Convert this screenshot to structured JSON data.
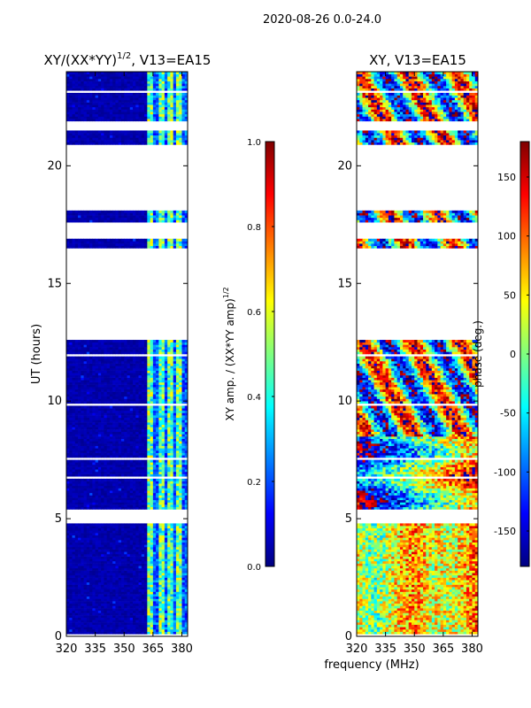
{
  "figure_title": "2020-08-26 0.0-24.0",
  "colors": {
    "background": "#ffffff",
    "axis": "#000000",
    "jet_stops": [
      "#00007f",
      "#0000ff",
      "#007fff",
      "#00ffff",
      "#7fff7f",
      "#ffff00",
      "#ff7f00",
      "#ff0000",
      "#7f0000"
    ]
  },
  "chart_data": [
    {
      "type": "heatmap",
      "title_main": "XY/(XX*YY)",
      "title_exp": "1/2",
      "title_suffix": ", V13=EA15",
      "xlabel": "",
      "ylabel": "UT (hours)",
      "xlim": [
        320,
        383
      ],
      "ylim": [
        0,
        24
      ],
      "xticks": [
        320,
        335,
        350,
        365,
        380
      ],
      "yticks": [
        0,
        5,
        10,
        15,
        20
      ],
      "colorbar": {
        "label_main": "XY amp. / (XX*YY amp)",
        "label_exp": "1/2",
        "range": [
          0.0,
          1.0
        ],
        "ticks": [
          "0.0",
          "0.2",
          "0.4",
          "0.6",
          "0.8",
          "1.0"
        ]
      },
      "data_ut_ranges": [
        [
          0.0,
          4.8
        ],
        [
          5.4,
          12.6
        ],
        [
          16.5,
          16.9
        ],
        [
          17.6,
          18.1
        ],
        [
          20.9,
          21.5
        ],
        [
          21.9,
          24.0
        ]
      ],
      "feature": "low amplitude (~0.0-0.1) below ~362 MHz; mixed 0.2-0.7 in the 362-383 MHz band"
    },
    {
      "type": "heatmap",
      "title": "XY, V13=EA15",
      "xlabel": "frequency (MHz)",
      "ylabel": "",
      "xlim": [
        320,
        383
      ],
      "ylim": [
        0,
        24
      ],
      "xticks": [
        320,
        335,
        350,
        365,
        380
      ],
      "yticks": [
        0,
        5,
        10,
        15,
        20
      ],
      "colorbar": {
        "label": "phase (deg.)",
        "range": [
          -180,
          180
        ],
        "ticks": [
          "-150",
          "-100",
          "-50",
          "0",
          "50",
          "100",
          "150"
        ]
      },
      "data_ut_ranges": [
        [
          0.0,
          4.8
        ],
        [
          5.4,
          12.6
        ],
        [
          16.5,
          16.9
        ],
        [
          17.6,
          18.1
        ],
        [
          20.9,
          21.5
        ],
        [
          21.9,
          24.0
        ]
      ],
      "feature": "phase drifts from ~+40 deg (0-5 h) to strongly varying -180..180 deg after 5 h"
    }
  ]
}
